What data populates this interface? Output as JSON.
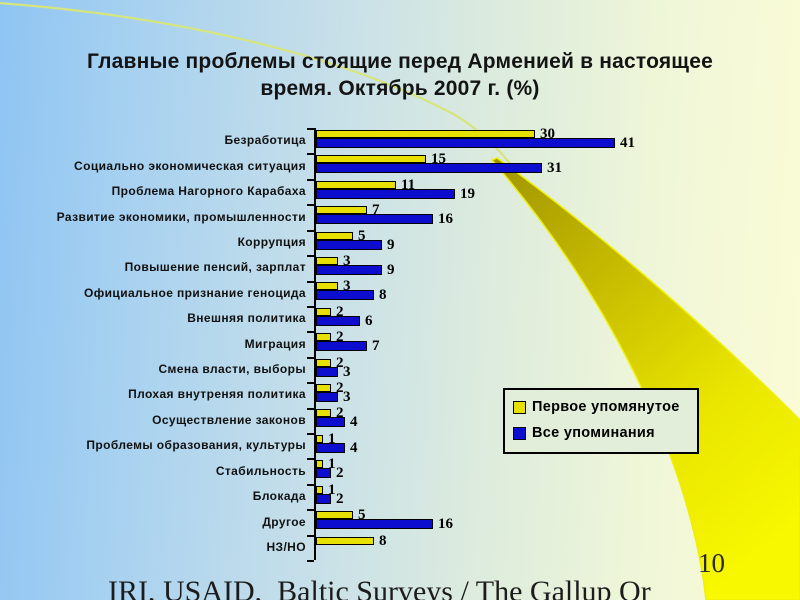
{
  "slide": {
    "title": "Главные проблемы стоящие перед Арменией в настоящее время. Октябрь 2007 г. (%)",
    "page_number": "10",
    "source_text": "IRI, USAID,  Baltic Surveys / The Gallup Or"
  },
  "chart_data": {
    "type": "bar",
    "orientation": "horizontal",
    "title": "Главные проблемы стоящие перед Арменией в настоящее время. Октябрь 2007 г. (%)",
    "xlim": [
      0,
      45
    ],
    "grid": false,
    "value_labels": true,
    "legend_position": "middle-right",
    "categories": [
      "Безработица",
      "Социально экономическая ситуация",
      "Проблема Нагорного Карабаха",
      "Развитие экономики, промышленности",
      "Коррупция",
      "Повышение пенсий, зарплат",
      "Официальное признание геноцида",
      "Внешняя политика",
      "Миграция",
      "Смена власти, выборы",
      "Плохая внутреняя политика",
      "Осуществление законов",
      "Проблемы образования, культуры",
      "Стабильность",
      "Блокада",
      "Другое",
      "НЗ/НО"
    ],
    "series": [
      {
        "name": "Первое упомянутое",
        "color": "#e8e000",
        "values": [
          30,
          15,
          11,
          7,
          5,
          3,
          3,
          2,
          2,
          2,
          2,
          2,
          1,
          1,
          1,
          5,
          8
        ]
      },
      {
        "name": "Все упоминания",
        "color": "#0d0dcf",
        "values": [
          41,
          31,
          19,
          16,
          9,
          9,
          8,
          6,
          7,
          3,
          3,
          4,
          4,
          2,
          2,
          16,
          null
        ]
      }
    ]
  }
}
